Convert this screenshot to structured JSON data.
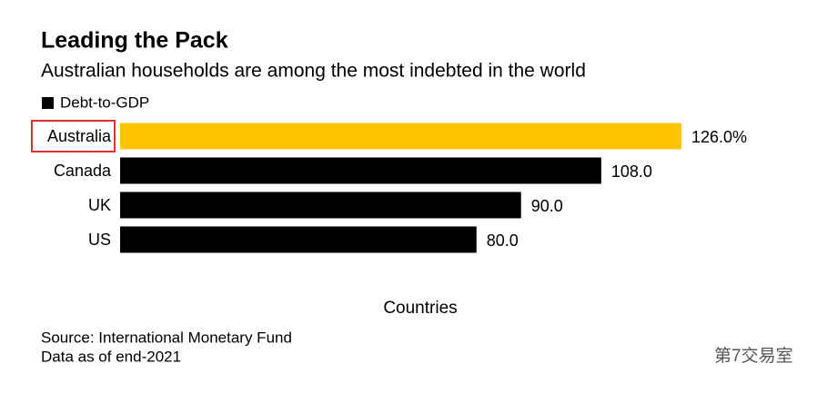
{
  "chart_data": {
    "type": "bar",
    "orientation": "horizontal",
    "title": "Leading the Pack",
    "subtitle": "Australian households are among the most indebted in the world",
    "x_label": "Countries",
    "categories": [
      "Australia",
      "Canada",
      "UK",
      "US"
    ],
    "series": [
      {
        "name": "Debt-to-GDP",
        "color": "#000000",
        "values": [
          126,
          108,
          90,
          80
        ],
        "value_labels": [
          "126.0%",
          "108.0",
          "90.0",
          "80.0"
        ],
        "colors": [
          "#ffc400",
          "#000000",
          "#000000",
          "#000000"
        ]
      }
    ],
    "xlim": [
      0,
      126
    ],
    "notes": [
      "Source: International Monetary Fund",
      "Data as of end-2021"
    ],
    "watermark": "第7交易室"
  }
}
